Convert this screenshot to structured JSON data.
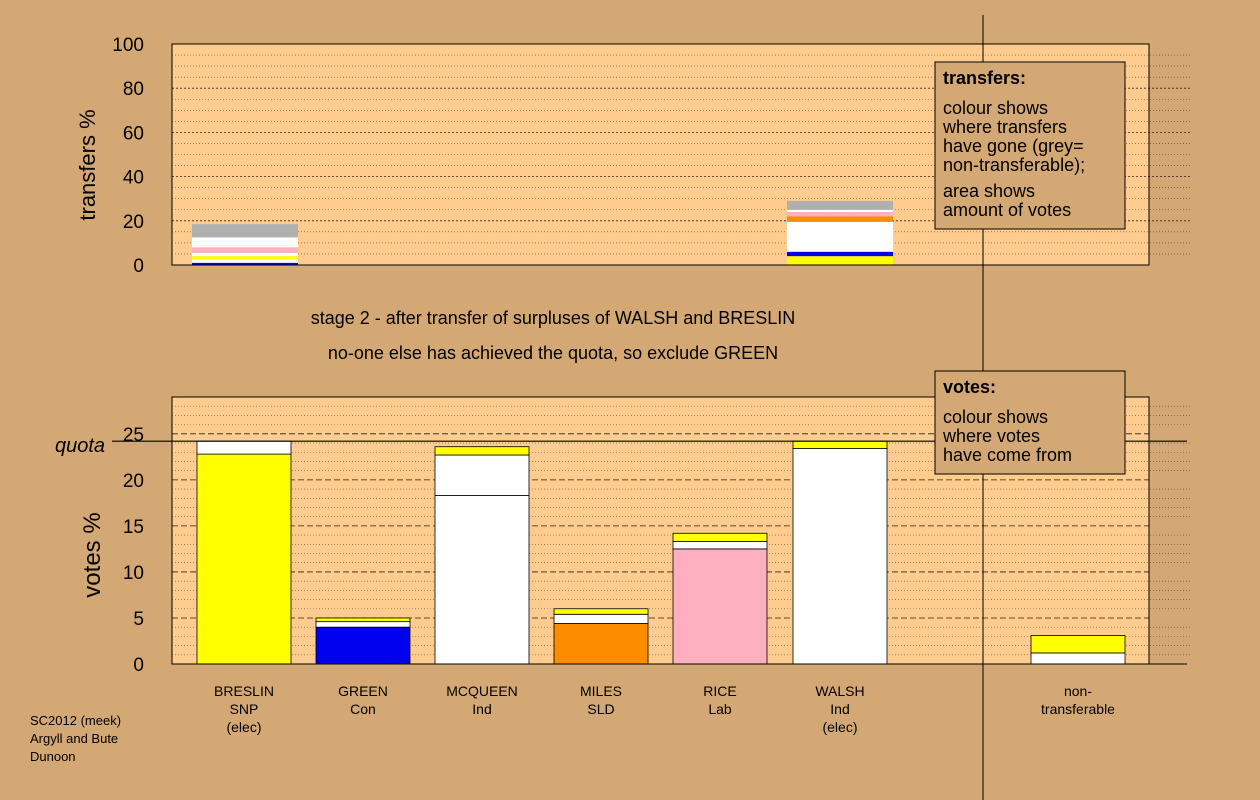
{
  "chart_data": [
    {
      "type": "bar",
      "panel": "transfers",
      "ylabel": "transfers %",
      "ylim": [
        0,
        100
      ],
      "yticks": [
        0,
        20,
        40,
        60,
        80,
        100
      ],
      "bars": [
        {
          "source": "BRESLIN",
          "segments": [
            {
              "value": 1.0,
              "color": "#0000ee"
            },
            {
              "value": 1.5,
              "color": "#ffffff"
            },
            {
              "value": 1.5,
              "color": "#ffff00"
            },
            {
              "value": 1.5,
              "color": "#ffffff"
            },
            {
              "value": 2.5,
              "color": "#ffb0c0"
            },
            {
              "value": 1.0,
              "color": "#ffffff"
            },
            {
              "value": 1.5,
              "color": "#ffffff"
            },
            {
              "value": 2.0,
              "color": "#ffffff"
            },
            {
              "value": 6.0,
              "color": "#b0b0b0"
            }
          ]
        },
        {
          "source": "WALSH",
          "segments": [
            {
              "value": 4.0,
              "color": "#ffff00"
            },
            {
              "value": 2.0,
              "color": "#0000ee"
            },
            {
              "value": 3.5,
              "color": "#ffffff"
            },
            {
              "value": 10.0,
              "color": "#ffffff"
            },
            {
              "value": 2.5,
              "color": "#ff8c00"
            },
            {
              "value": 2.0,
              "color": "#ffb0c0"
            },
            {
              "value": 1.0,
              "color": "#ffffff"
            },
            {
              "value": 4.0,
              "color": "#b0b0b0"
            }
          ]
        }
      ],
      "legend": {
        "title": "transfers:",
        "lines": [
          "colour shows",
          "where transfers",
          "have gone (grey=",
          "non-transferable);",
          "area shows",
          "amount of votes"
        ]
      }
    },
    {
      "type": "bar",
      "panel": "votes",
      "ylabel": "votes %",
      "ylim": [
        0,
        29
      ],
      "yticks": [
        0,
        5,
        10,
        15,
        20,
        25
      ],
      "quota": 24.2,
      "quota_label": "quota",
      "categories": [
        {
          "lines": [
            "BRESLIN",
            "SNP",
            "(elec)"
          ]
        },
        {
          "lines": [
            "GREEN",
            "Con"
          ]
        },
        {
          "lines": [
            "MCQUEEN",
            "Ind"
          ]
        },
        {
          "lines": [
            "MILES",
            "SLD"
          ]
        },
        {
          "lines": [
            "RICE",
            "Lab"
          ]
        },
        {
          "lines": [
            "WALSH",
            "Ind",
            "(elec)"
          ]
        },
        {
          "lines": [
            "non-",
            "transferable"
          ]
        }
      ],
      "bars": [
        {
          "segments": [
            {
              "value": 22.8,
              "color": "#ffff00"
            },
            {
              "value": 1.4,
              "color": "#ffffff"
            }
          ]
        },
        {
          "segments": [
            {
              "value": 4.0,
              "color": "#0000ee"
            },
            {
              "value": 0.6,
              "color": "#ffffff"
            },
            {
              "value": 0.4,
              "color": "#ffff00"
            }
          ]
        },
        {
          "segments": [
            {
              "value": 18.3,
              "color": "#ffffff"
            },
            {
              "value": 4.4,
              "color": "#ffffff"
            },
            {
              "value": 0.9,
              "color": "#ffff00"
            }
          ]
        },
        {
          "segments": [
            {
              "value": 4.4,
              "color": "#ff8c00"
            },
            {
              "value": 1.0,
              "color": "#ffffff"
            },
            {
              "value": 0.6,
              "color": "#ffff00"
            }
          ]
        },
        {
          "segments": [
            {
              "value": 12.5,
              "color": "#ffb0c0"
            },
            {
              "value": 0.8,
              "color": "#ffffff"
            },
            {
              "value": 0.9,
              "color": "#ffff00"
            }
          ]
        },
        {
          "segments": [
            {
              "value": 23.4,
              "color": "#ffffff"
            },
            {
              "value": 0.8,
              "color": "#ffff00"
            }
          ]
        },
        {
          "segments": [
            {
              "value": 1.2,
              "color": "#ffffff"
            },
            {
              "value": 1.9,
              "color": "#ffff00"
            }
          ]
        }
      ],
      "legend": {
        "title": "votes:",
        "lines": [
          "colour shows",
          "where votes",
          "have come from"
        ]
      }
    }
  ],
  "captions": {
    "line1": "stage 2 - after transfer of surpluses of WALSH and BRESLIN",
    "line2": "no-one else has achieved the quota, so exclude GREEN"
  },
  "footer": [
    "SC2012 (meek)",
    "Argyll and Bute",
    "Dunoon"
  ],
  "colors": {
    "background": "#d4a874",
    "panel": "#ffcc90"
  }
}
